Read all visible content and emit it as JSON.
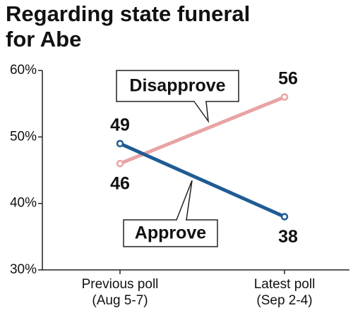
{
  "chart_data": {
    "type": "line",
    "title": "Regarding state funeral\nfor Abe",
    "categories": [
      "Previous poll\n(Aug 5-7)",
      "Latest poll\n(Sep 2-4)"
    ],
    "series": [
      {
        "name": "Approve",
        "color": "#1f5b94",
        "values": [
          49,
          38
        ]
      },
      {
        "name": "Disapprove",
        "color": "#e8a3a3",
        "values": [
          46,
          56
        ]
      }
    ],
    "ylim": [
      30,
      60
    ],
    "yticks": [
      {
        "value": 30,
        "label": "30%"
      },
      {
        "value": 40,
        "label": "40%"
      },
      {
        "value": 50,
        "label": "50%"
      },
      {
        "value": 60,
        "label": "60%"
      }
    ]
  }
}
